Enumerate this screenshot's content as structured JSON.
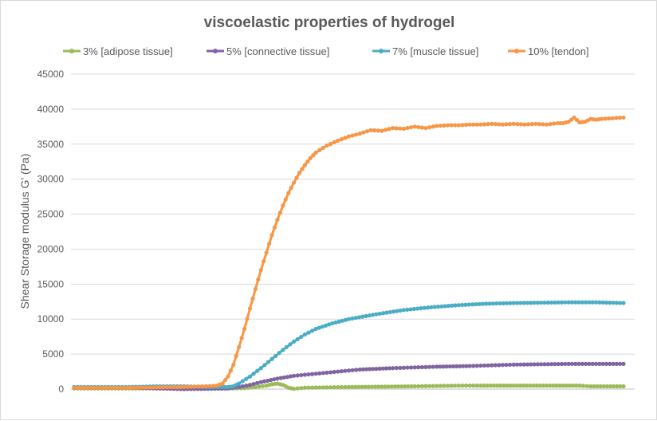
{
  "chart_data": {
    "type": "line",
    "title": "viscoelastic properties of hydrogel",
    "xlabel": "",
    "ylabel": "Shear Storage modulus G' (Pa)",
    "ylim": [
      0,
      45000
    ],
    "yticks": [
      "0",
      "5000",
      "10000",
      "15000",
      "20000",
      "25000",
      "30000",
      "35000",
      "40000",
      "45000"
    ],
    "xlim": [
      0,
      100
    ],
    "grid": true,
    "legend_position": "top",
    "series": [
      {
        "name": "3% [adipose tissue]",
        "color": "#9bbb59",
        "x": [
          0,
          10,
          20,
          25,
          29,
          31,
          33,
          35,
          36,
          37,
          38,
          39,
          40,
          42,
          46,
          50,
          56,
          62,
          66,
          70,
          74,
          80,
          86,
          92,
          94,
          97,
          100
        ],
        "y": [
          100,
          100,
          100,
          100,
          100,
          150,
          300,
          500,
          700,
          800,
          600,
          200,
          50,
          200,
          250,
          300,
          350,
          400,
          450,
          500,
          500,
          500,
          500,
          500,
          400,
          400,
          400
        ]
      },
      {
        "name": "5% [connective tissue]",
        "color": "#8064a2",
        "x": [
          0,
          10,
          15,
          20,
          25,
          28,
          30,
          32,
          34,
          37,
          40,
          44,
          48,
          52,
          55,
          58,
          62,
          66,
          72,
          76,
          80,
          85,
          90,
          95,
          100
        ],
        "y": [
          200,
          200,
          100,
          0,
          50,
          100,
          300,
          600,
          1000,
          1500,
          1900,
          2200,
          2500,
          2800,
          2900,
          3000,
          3100,
          3200,
          3300,
          3400,
          3500,
          3550,
          3600,
          3600,
          3600
        ]
      },
      {
        "name": "7% [muscle tissue]",
        "color": "#4bacc6",
        "x": [
          0,
          10,
          15,
          20,
          25,
          28,
          29,
          30,
          32,
          34,
          36,
          38,
          40,
          42,
          44,
          47,
          50,
          55,
          60,
          65,
          70,
          75,
          80,
          85,
          90,
          95,
          100
        ],
        "y": [
          300,
          300,
          400,
          400,
          300,
          300,
          400,
          800,
          1800,
          3000,
          4300,
          5600,
          6800,
          7800,
          8600,
          9400,
          10000,
          10700,
          11300,
          11700,
          12000,
          12200,
          12300,
          12350,
          12400,
          12400,
          12300
        ]
      },
      {
        "name": "10% [tendon]",
        "color": "#f79646",
        "x": [
          0,
          10,
          20,
          24,
          26,
          27,
          28,
          29,
          30,
          31,
          32,
          33,
          34,
          35,
          36,
          37,
          38,
          39,
          40,
          41,
          42,
          43,
          44,
          46,
          48,
          50,
          52,
          54,
          56,
          58,
          60,
          62,
          64,
          66,
          68,
          70,
          72,
          74,
          76,
          78,
          80,
          82,
          84,
          86,
          88,
          89,
          90,
          91,
          92,
          93,
          94,
          95,
          96,
          98,
          100
        ],
        "y": [
          200,
          200,
          300,
          400,
          500,
          800,
          1800,
          3500,
          6000,
          8600,
          11500,
          14300,
          17000,
          19500,
          22000,
          24200,
          26200,
          28000,
          29500,
          30900,
          32000,
          33000,
          33800,
          34800,
          35500,
          36100,
          36500,
          37000,
          36900,
          37300,
          37200,
          37500,
          37300,
          37600,
          37700,
          37700,
          37800,
          37800,
          37900,
          37800,
          37900,
          37800,
          37900,
          37800,
          38000,
          38000,
          38200,
          38800,
          38100,
          38200,
          38600,
          38500,
          38600,
          38700,
          38800
        ]
      }
    ]
  }
}
